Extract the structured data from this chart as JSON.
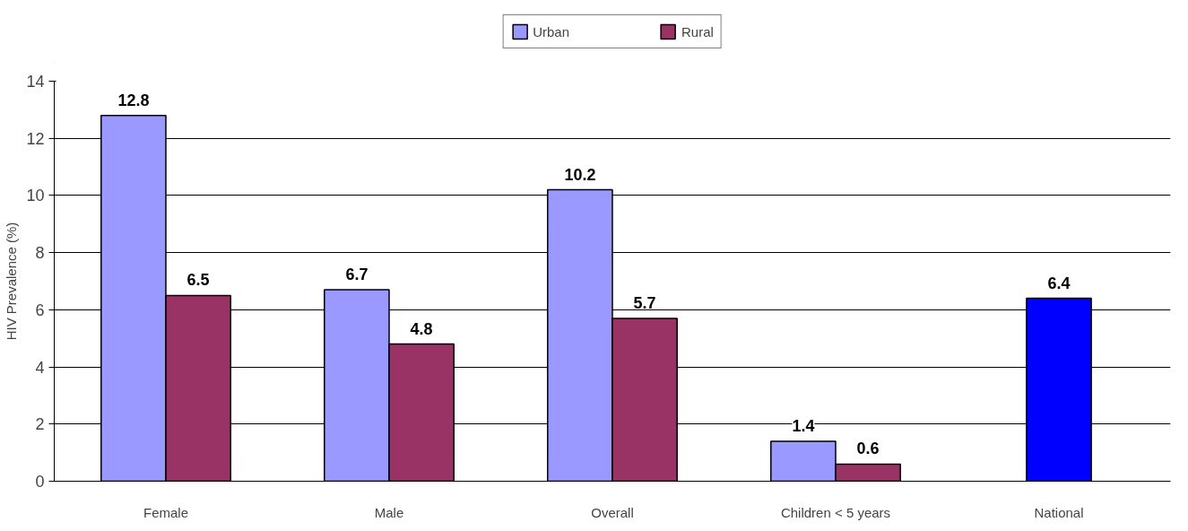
{
  "chart_data": {
    "type": "bar",
    "ylabel": "HIV Prevalence (%)",
    "categories": [
      "Female",
      "Male",
      "Overall",
      "Children < 5 years",
      "National"
    ],
    "series": [
      {
        "name": "Urban",
        "color": "#9999ff",
        "values": [
          12.8,
          6.7,
          10.2,
          1.4,
          null
        ]
      },
      {
        "name": "Rural",
        "color": "#993366",
        "values": [
          6.5,
          4.8,
          5.7,
          0.6,
          null
        ]
      },
      {
        "color": "#0000ff",
        "values": [
          null,
          null,
          null,
          null,
          6.4
        ]
      }
    ],
    "ylim": [
      0,
      14
    ],
    "yticks": [
      0,
      2,
      4,
      6,
      8,
      10,
      12,
      14
    ],
    "grid": "y",
    "legend": "top",
    "data_labels": true
  }
}
